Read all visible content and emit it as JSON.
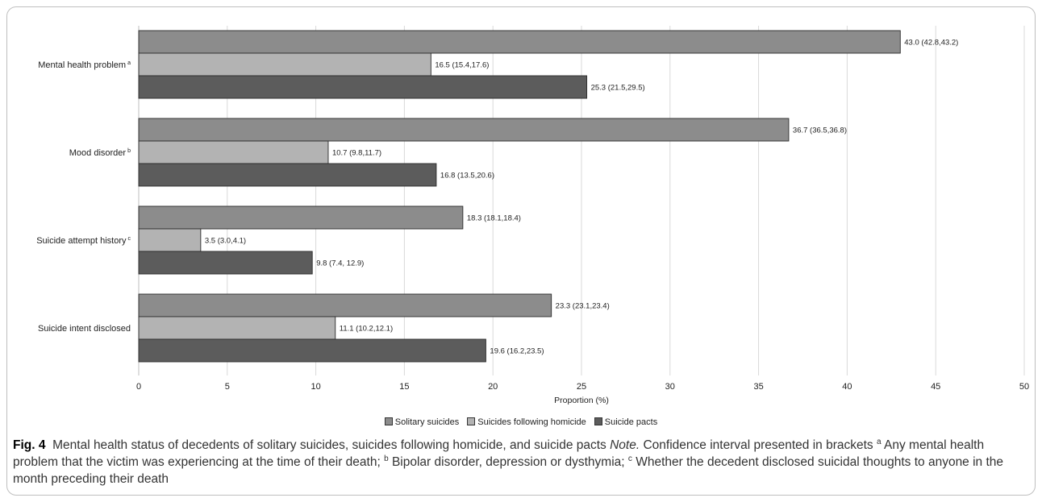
{
  "chart_data": {
    "type": "bar",
    "orientation": "horizontal",
    "categories": [
      {
        "label": "Mental health problem",
        "sup": "a"
      },
      {
        "label": "Mood disorder",
        "sup": "b"
      },
      {
        "label": "Suicide attempt history",
        "sup": "c"
      },
      {
        "label": "Suicide intent disclosed",
        "sup": ""
      }
    ],
    "series": [
      {
        "name": "Solitary suicides",
        "color": "#8c8c8c",
        "values": [
          43.0,
          36.7,
          18.3,
          23.3
        ],
        "labels": [
          "43.0 (42.8,43.2)",
          "36.7 (36.5,36.8)",
          "18.3 (18.1,18.4)",
          "23.3 (23.1,23.4)"
        ]
      },
      {
        "name": "Suicides following homicide",
        "color": "#b3b3b3",
        "values": [
          16.5,
          10.7,
          3.5,
          11.1
        ],
        "labels": [
          "16.5 (15.4,17.6)",
          "10.7 (9.8,11.7)",
          "3.5 (3.0,4.1)",
          "11.1 (10.2,12.1)"
        ]
      },
      {
        "name": "Suicide pacts",
        "color": "#5c5c5c",
        "values": [
          25.3,
          16.8,
          9.8,
          19.6
        ],
        "labels": [
          "25.3 (21.5,29.5)",
          "16.8 (13.5,20.6)",
          "9.8 (7.4, 12.9)",
          "19.6 (16.2,23.5)"
        ]
      }
    ],
    "xlabel": "Proportion (%)",
    "xlim": [
      0,
      50
    ],
    "xticks": [
      "0",
      "5",
      "10",
      "15",
      "20",
      "25",
      "30",
      "35",
      "40",
      "45",
      "50"
    ],
    "grid": "vertical",
    "legend": "bottom-center"
  },
  "caption": {
    "fig_label": "Fig. 4",
    "title": "Mental health status of decedents of solitary suicides, suicides following homicide, and suicide pacts",
    "note_label": "Note.",
    "note_text": "Confidence interval presented in brackets",
    "footnote_a_mark": "a",
    "footnote_a": "Any mental health problem that the victim was experiencing at the time of their death;",
    "footnote_b_mark": "b",
    "footnote_b": "Bipolar disorder, depression or dysthymia;",
    "footnote_c_mark": "c",
    "footnote_c": "Whether the decedent disclosed suicidal thoughts to anyone in the month preceding their death"
  }
}
